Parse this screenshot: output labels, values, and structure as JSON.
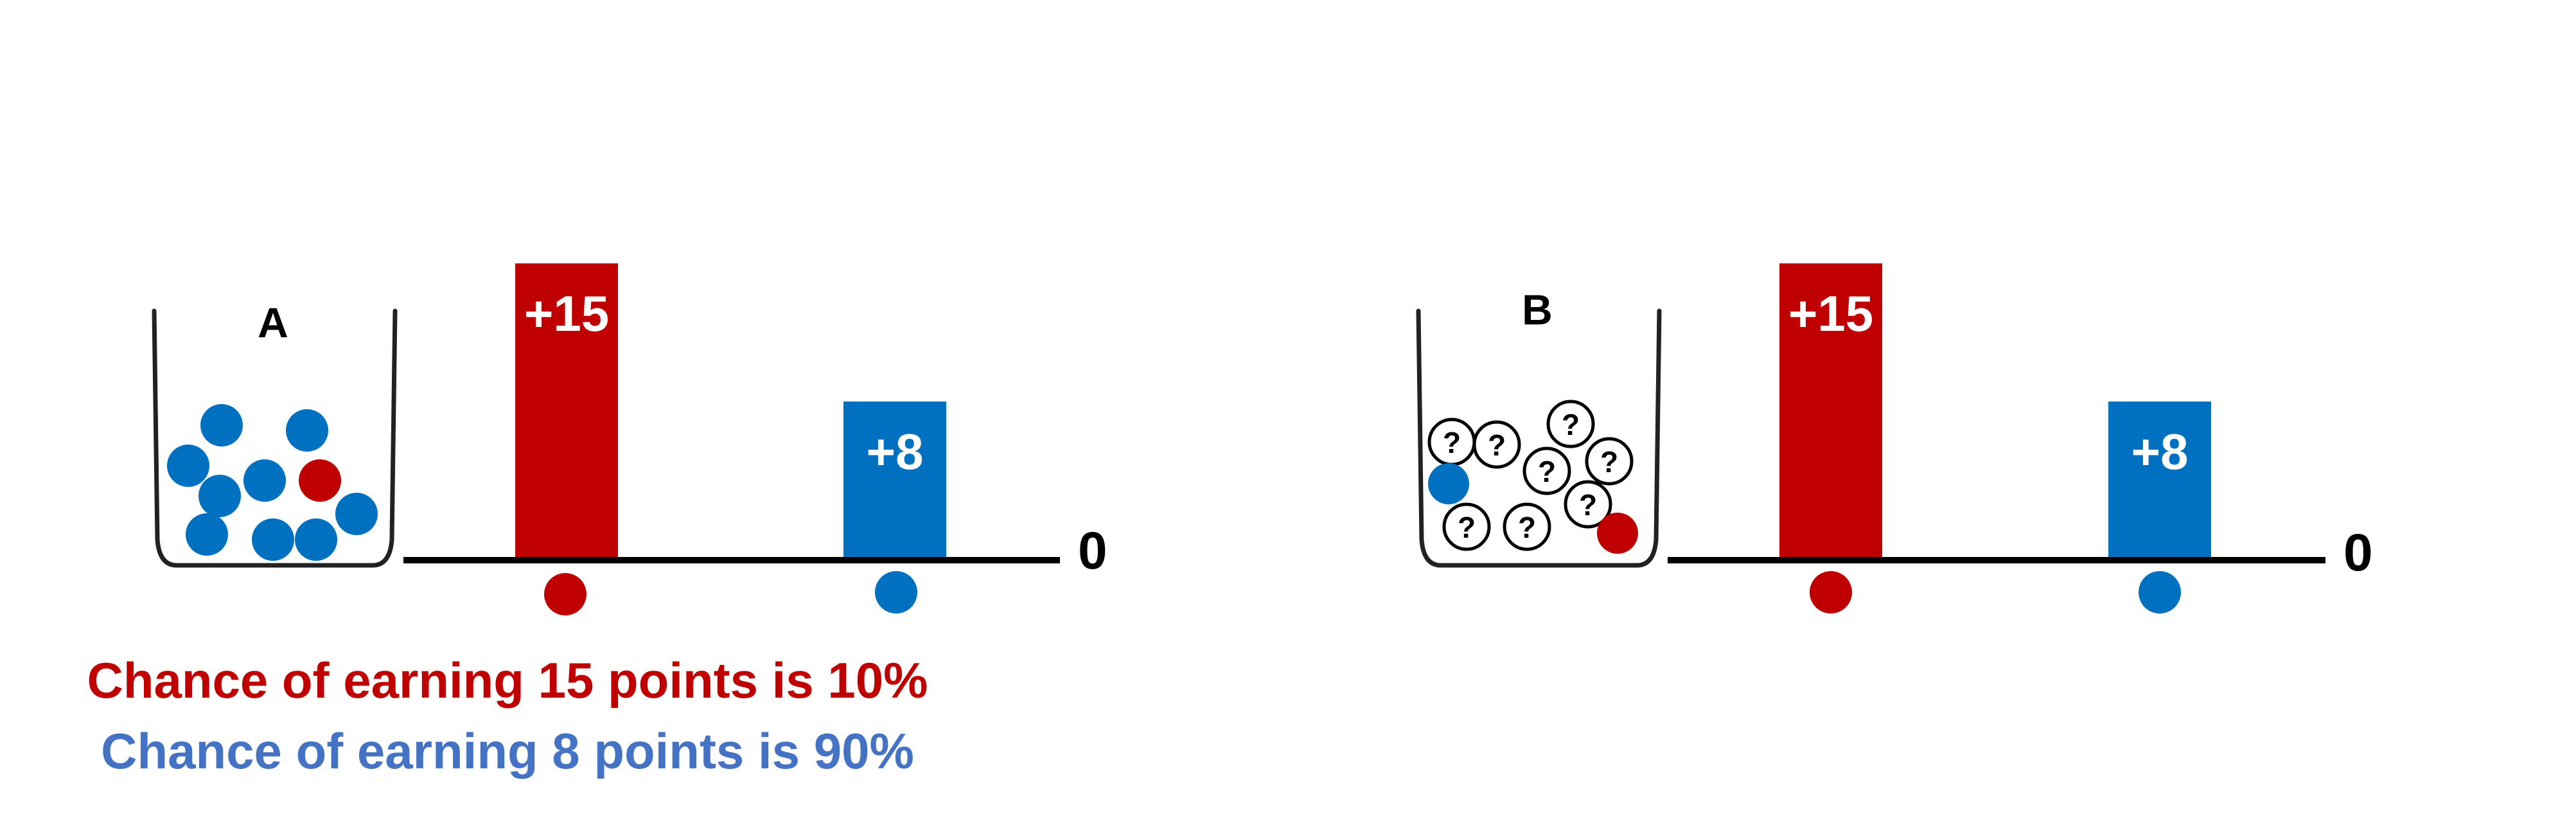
{
  "colors": {
    "red": "#c00000",
    "blue": "#0070c0",
    "chance_blue_text": "#4472c4",
    "outline": "#222222"
  },
  "panels": [
    {
      "cup_label": "A",
      "bars": [
        {
          "label": "+15",
          "value": 15,
          "color": "red"
        },
        {
          "label": "+8",
          "value": 8,
          "color": "blue"
        }
      ],
      "baseline_label": "0",
      "balls": {
        "blue": 9,
        "red": 1,
        "unknown": 0
      }
    },
    {
      "cup_label": "B",
      "bars": [
        {
          "label": "+15",
          "value": 15,
          "color": "red"
        },
        {
          "label": "+8",
          "value": 8,
          "color": "blue"
        }
      ],
      "baseline_label": "0",
      "balls": {
        "blue": 1,
        "red": 1,
        "unknown": 8
      },
      "unknown_symbol": "?"
    }
  ],
  "chance_text": {
    "red": "Chance of earning 15 points is 10%",
    "blue": "Chance of earning 8 points is 90%"
  }
}
